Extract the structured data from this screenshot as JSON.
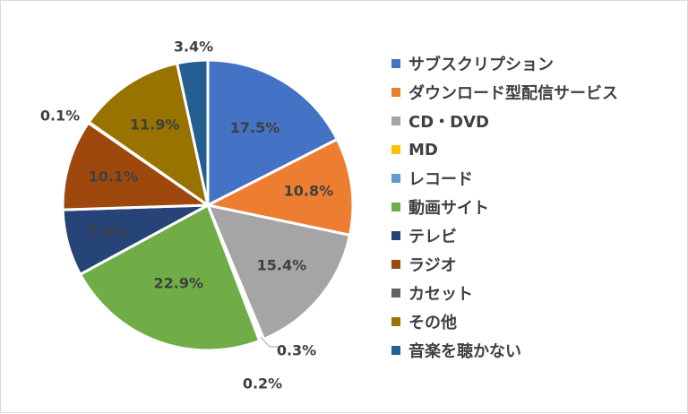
{
  "chart_data": {
    "type": "pie",
    "title": "",
    "start_angle_deg": 0,
    "direction": "clockwise",
    "legend_position": "right",
    "slices": [
      {
        "label": "サブスクリプション",
        "value": 17.5,
        "value_label": "17.5%",
        "color": "#4472C4"
      },
      {
        "label": "ダウンロード型配信サービス",
        "value": 10.8,
        "value_label": "10.8%",
        "color": "#ED7D31"
      },
      {
        "label": "CD・DVD",
        "value": 15.4,
        "value_label": "15.4%",
        "color": "#A5A5A5"
      },
      {
        "label": "MD",
        "value": 0.3,
        "value_label": "0.3%",
        "color": "#FFC000"
      },
      {
        "label": "レコード",
        "value": 0.2,
        "value_label": "0.2%",
        "color": "#5B9BD5"
      },
      {
        "label": "動画サイト",
        "value": 22.9,
        "value_label": "22.9%",
        "color": "#70AD47"
      },
      {
        "label": "テレビ",
        "value": 7.4,
        "value_label": "7.4%",
        "color": "#264478"
      },
      {
        "label": "ラジオ",
        "value": 10.1,
        "value_label": "10.1%",
        "color": "#9E480E"
      },
      {
        "label": "カセット",
        "value": 0.1,
        "value_label": "0.1%",
        "color": "#636363"
      },
      {
        "label": "その他",
        "value": 11.9,
        "value_label": "11.9%",
        "color": "#997300"
      },
      {
        "label": "音楽を聴かない",
        "value": 3.4,
        "value_label": "3.4%",
        "color": "#255E91"
      }
    ]
  }
}
